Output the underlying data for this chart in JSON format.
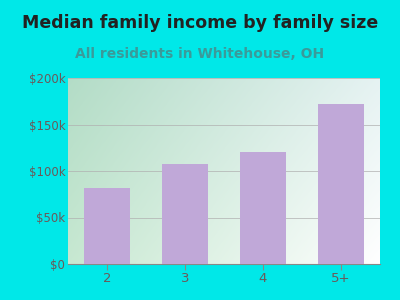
{
  "title": "Median family income by family size",
  "subtitle": "All residents in Whitehouse, OH",
  "categories": [
    "2",
    "3",
    "4",
    "5+"
  ],
  "values": [
    82000,
    108000,
    120000,
    172000
  ],
  "bar_color": "#c0a8d8",
  "title_fontsize": 12.5,
  "subtitle_fontsize": 10,
  "title_color": "#222222",
  "subtitle_color": "#3a9a9a",
  "tick_label_color": "#6a5a5a",
  "background_outer": "#00e8e8",
  "background_inner_left": "#c8e8d0",
  "background_inner_right": "#f0f8f0",
  "background_inner_bottom": "#ffffff",
  "ylim": [
    0,
    200000
  ],
  "yticks": [
    0,
    50000,
    100000,
    150000,
    200000
  ],
  "ytick_labels": [
    "$0",
    "$50k",
    "$100k",
    "$150k",
    "$200k"
  ]
}
